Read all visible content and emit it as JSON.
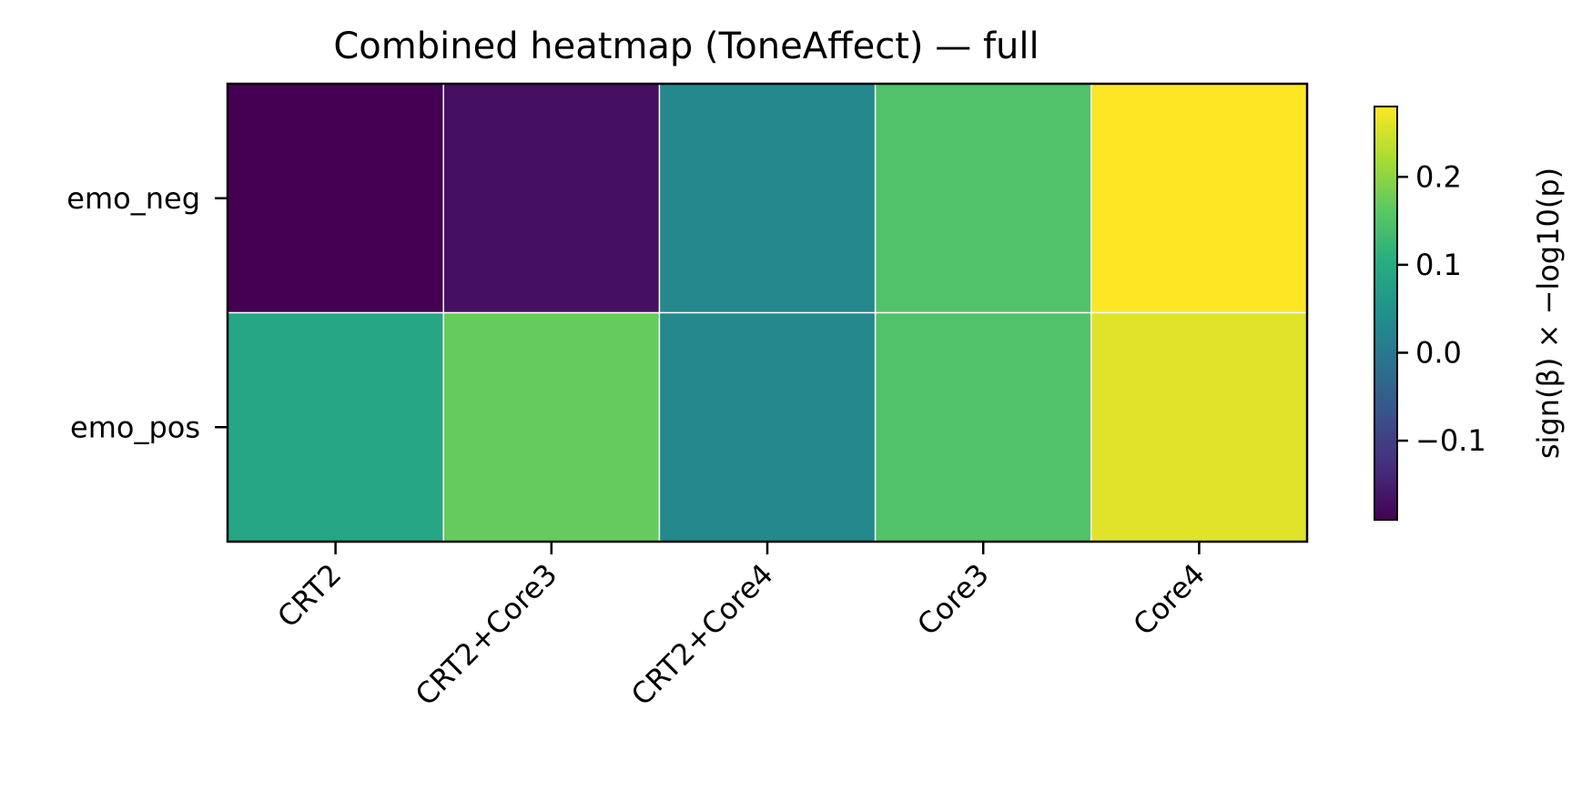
{
  "chart_data": {
    "type": "heatmap",
    "title": "Combined heatmap (ToneAffect) — full",
    "rows": [
      "emo_neg",
      "emo_pos"
    ],
    "columns": [
      "CRT2",
      "CRT2+Core3",
      "CRT2+Core4",
      "Core3",
      "Core4"
    ],
    "values": [
      [
        -0.19,
        -0.17,
        0.03,
        0.15,
        0.28
      ],
      [
        0.09,
        0.17,
        0.03,
        0.15,
        0.26
      ]
    ],
    "colormap": "viridis",
    "colorbar": {
      "label": "sign(β) × −log10(p)",
      "vmin": -0.19,
      "vmax": 0.28,
      "ticks": [
        -0.1,
        0.0,
        0.1,
        0.2
      ],
      "tick_labels": [
        "−0.1",
        "0.0",
        "0.1",
        "0.2"
      ]
    },
    "cell_gridlines": true
  }
}
